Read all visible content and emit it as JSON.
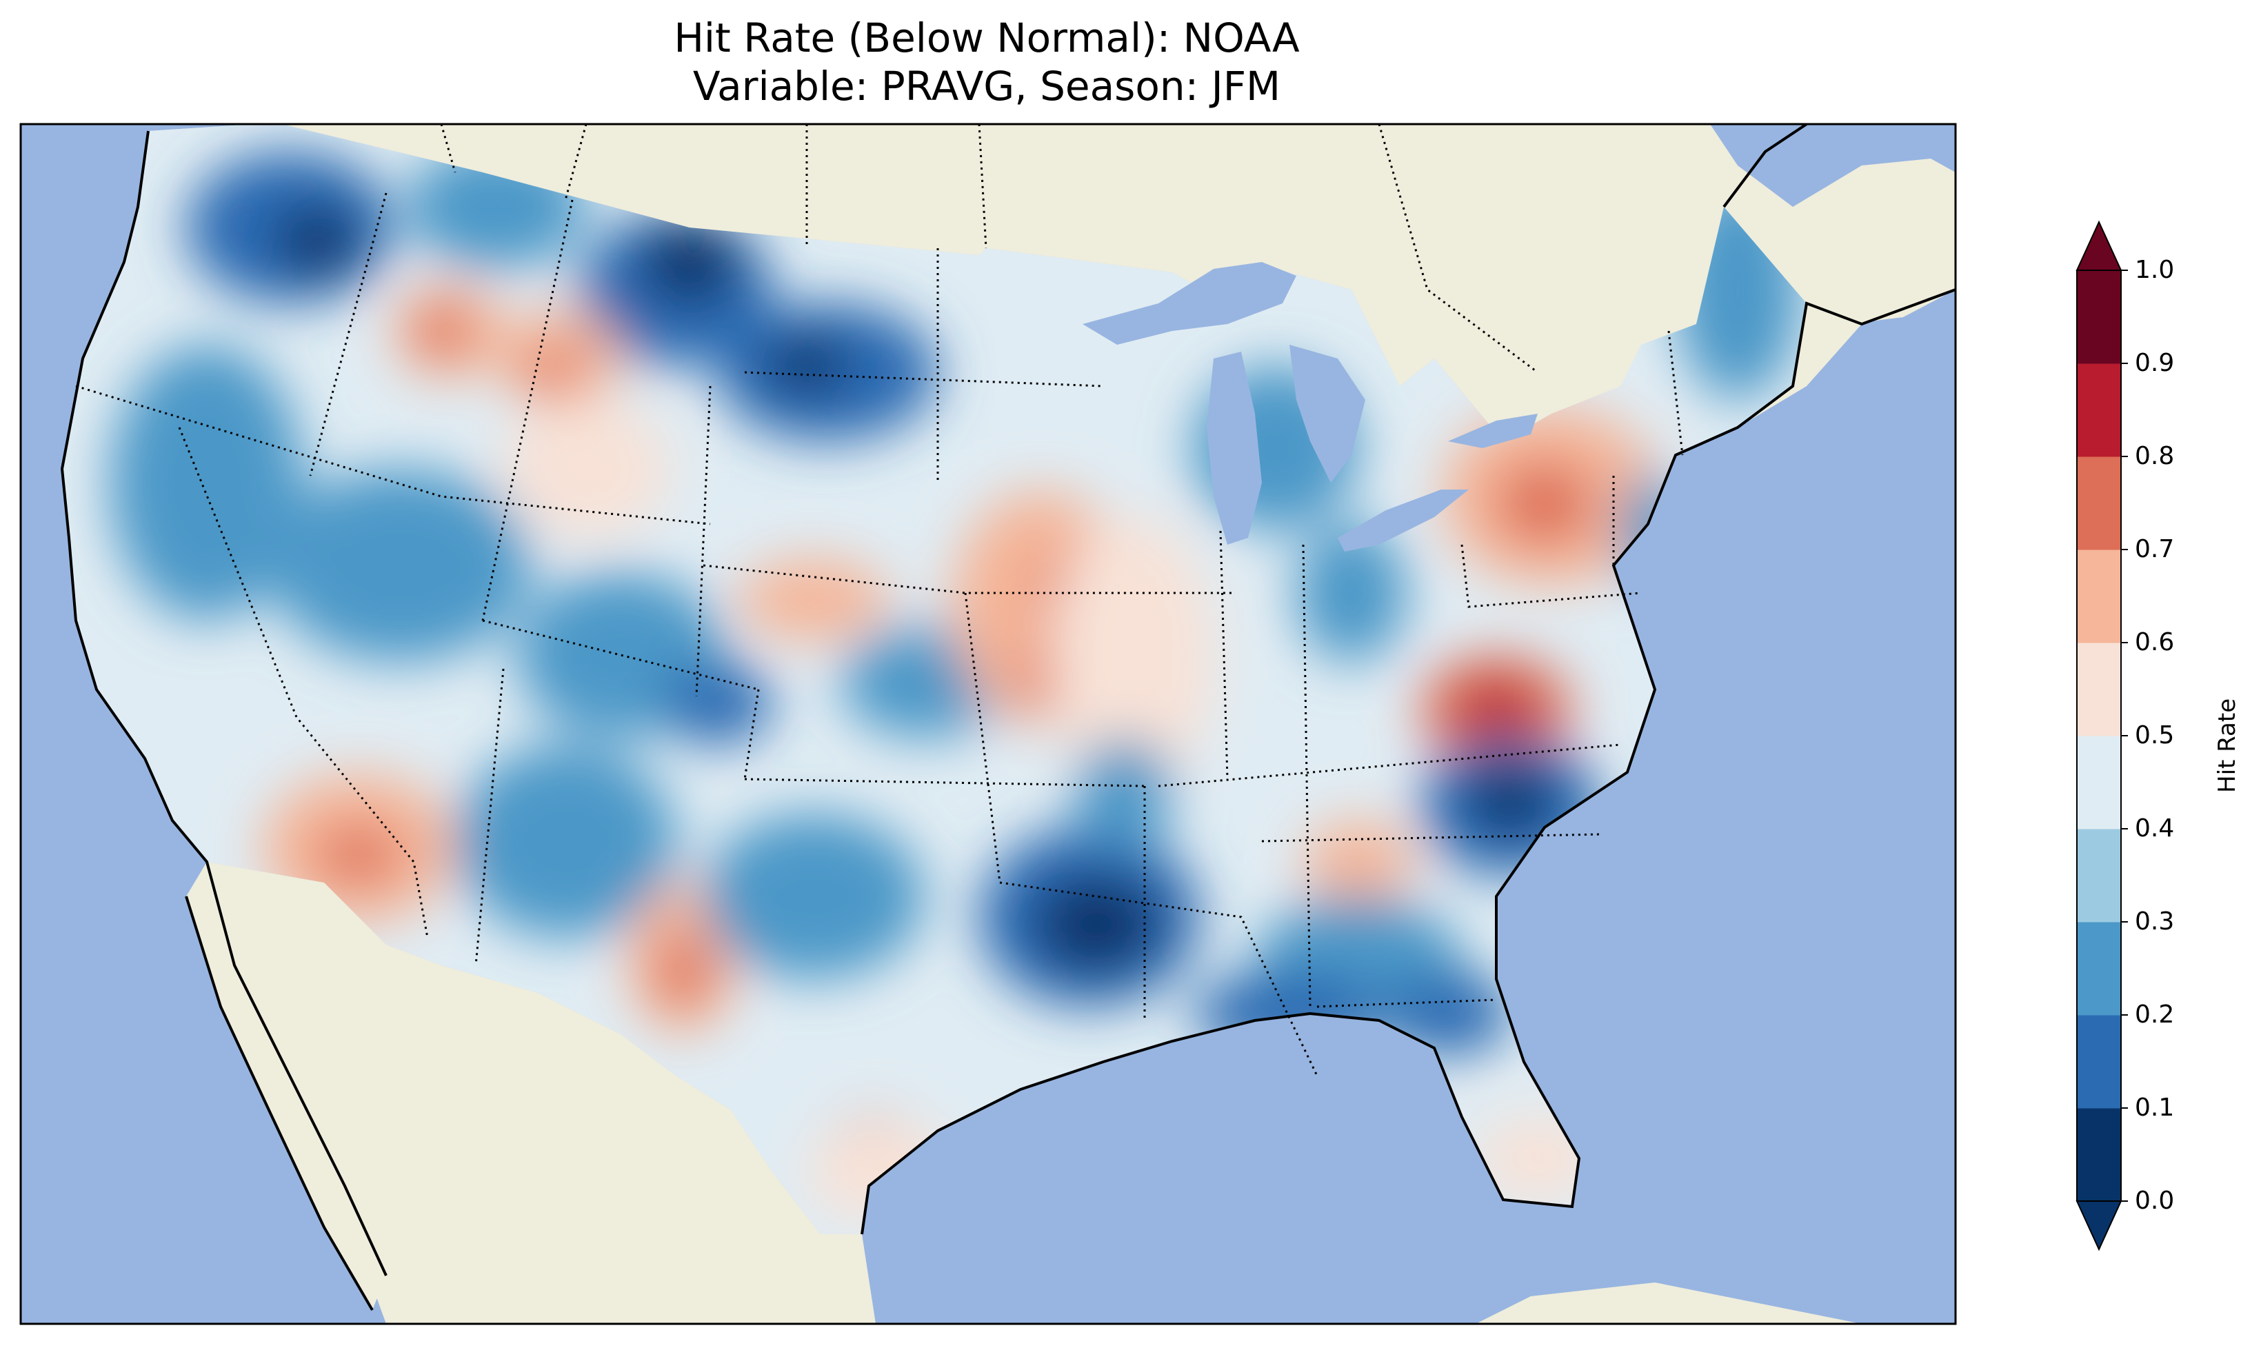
{
  "title_line1": "Hit Rate (Below Normal): NOAA",
  "title_line2": "Variable: PRAVG, Season: JFM",
  "colorbar": {
    "label": "Hit Rate",
    "ticks": [
      "0.0",
      "0.1",
      "0.2",
      "0.3",
      "0.4",
      "0.5",
      "0.6",
      "0.7",
      "0.8",
      "0.9",
      "1.0"
    ],
    "colors": [
      "#073368",
      "#2a6bb2",
      "#4c98c8",
      "#9ccae1",
      "#e0ecf3",
      "#f8e2d7",
      "#f5b699",
      "#dd6e57",
      "#b81c2e",
      "#6a0521"
    ],
    "extend": "both"
  },
  "map_colors": {
    "ocean": "#98b5e1",
    "land": "#efeddc",
    "lakes": "#98b5e1"
  }
}
